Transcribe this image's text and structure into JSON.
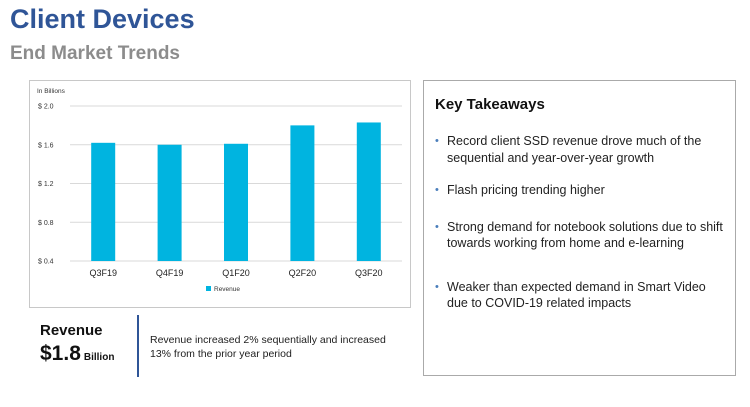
{
  "header": {
    "title": "Client Devices",
    "subtitle": "End Market Trends"
  },
  "chart_data": {
    "type": "bar",
    "unit_note": "In Billions",
    "categories": [
      "Q3F19",
      "Q4F19",
      "Q1F20",
      "Q2F20",
      "Q3F20"
    ],
    "series": [
      {
        "name": "Revenue",
        "values": [
          1.62,
          1.6,
          1.61,
          1.8,
          1.83
        ],
        "color": "#00b4e0"
      }
    ],
    "ylim": [
      0.4,
      2.0
    ],
    "yticks": [
      0.4,
      0.8,
      1.2,
      1.6,
      2.0
    ],
    "ytick_labels": [
      "$ 0.4",
      "$ 0.8",
      "$ 1.2",
      "$ 1.6",
      "$ 2.0"
    ],
    "grid": true,
    "legend_position": "bottom"
  },
  "revenue": {
    "label": "Revenue",
    "value": "$1.8",
    "unit": "Billion",
    "note": "Revenue increased 2% sequentially and increased 13% from the prior year period"
  },
  "takeaways": {
    "title": "Key Takeaways",
    "items": [
      "Record client SSD revenue drove much of the sequential and year-over-year growth",
      "Flash pricing trending higher",
      "Strong demand for notebook solutions due to shift towards working from home and e-learning",
      "Weaker than expected demand in Smart Video due to COVID-19 related impacts"
    ]
  },
  "colors": {
    "title": "#2f5597",
    "subtitle": "#8c8c8c",
    "bar": "#00b4e0",
    "bullet": "#4a7ebb"
  }
}
